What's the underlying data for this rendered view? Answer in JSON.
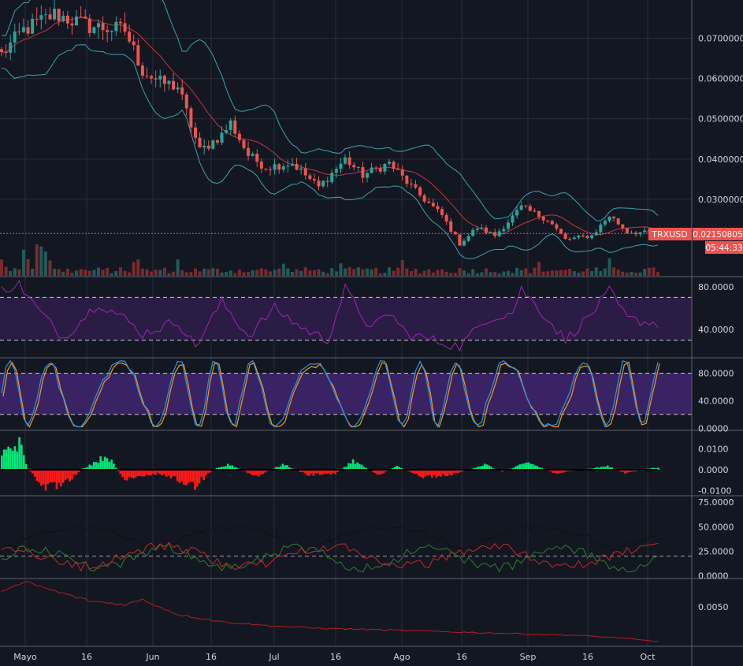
{
  "colors": {
    "background": "#131722",
    "grid": "#2a2e39",
    "up": "#26a69a",
    "down": "#ef5350",
    "bollinger": "#3ba3ad",
    "ma": "#c3383d",
    "volume_up": "#1e5d5a",
    "volume_down": "#7a2b2e",
    "rsi": "#9c27b0",
    "rsi_band": "#2b1c45",
    "stoch_k": "#2196f3",
    "stoch_d": "#ff9800",
    "stoch_band": "#3a2365",
    "hist_up": "#00e676",
    "hist_down": "#ff1a1a",
    "dmi_plus": "#2e7d32",
    "dmi_minus": "#c62828",
    "adx": "#111111",
    "bottom_line": "#b71c1c",
    "price_tag": "#ef5350"
  },
  "symbol_tag": "TRXUSD",
  "price_tag": "0.02150805",
  "countdown_tag": "05:44:33",
  "time_axis": [
    "Mayo",
    "16",
    "Jun",
    "16",
    "Jul",
    "16",
    "Ago",
    "16",
    "Sep",
    "16",
    "Oct"
  ],
  "chart_data": [
    {
      "type": "candlestick",
      "pane": "price",
      "series_label": "TRXUSD",
      "yticks": [
        "0.07000000",
        "0.06000000",
        "0.05000000",
        "0.04000000",
        "0.03000000"
      ],
      "ylim": [
        0.011,
        0.0795
      ],
      "last_price": 0.02150805,
      "keypoints": [
        {
          "x": 0,
          "y": 0.066
        },
        {
          "x": 5,
          "y": 0.072
        },
        {
          "x": 12,
          "y": 0.076
        },
        {
          "x": 20,
          "y": 0.073
        },
        {
          "x": 28,
          "y": 0.072
        },
        {
          "x": 32,
          "y": 0.062
        },
        {
          "x": 36,
          "y": 0.059
        },
        {
          "x": 40,
          "y": 0.058
        },
        {
          "x": 45,
          "y": 0.042
        },
        {
          "x": 50,
          "y": 0.046
        },
        {
          "x": 52,
          "y": 0.049
        },
        {
          "x": 56,
          "y": 0.041
        },
        {
          "x": 60,
          "y": 0.038
        },
        {
          "x": 66,
          "y": 0.039
        },
        {
          "x": 72,
          "y": 0.033
        },
        {
          "x": 78,
          "y": 0.04
        },
        {
          "x": 82,
          "y": 0.036
        },
        {
          "x": 88,
          "y": 0.039
        },
        {
          "x": 94,
          "y": 0.032
        },
        {
          "x": 100,
          "y": 0.026
        },
        {
          "x": 104,
          "y": 0.019
        },
        {
          "x": 108,
          "y": 0.023
        },
        {
          "x": 112,
          "y": 0.021
        },
        {
          "x": 118,
          "y": 0.028
        },
        {
          "x": 124,
          "y": 0.025
        },
        {
          "x": 128,
          "y": 0.02
        },
        {
          "x": 134,
          "y": 0.021
        },
        {
          "x": 138,
          "y": 0.026
        },
        {
          "x": 142,
          "y": 0.022
        },
        {
          "x": 148,
          "y": 0.0215
        }
      ]
    },
    {
      "type": "line",
      "pane": "rsi",
      "yticks": [
        "80.0000",
        "40.0000"
      ],
      "ylim": [
        15,
        88
      ],
      "bands": [
        70,
        30
      ],
      "keypoints": [
        {
          "x": 0,
          "y": 78
        },
        {
          "x": 4,
          "y": 82
        },
        {
          "x": 8,
          "y": 60
        },
        {
          "x": 14,
          "y": 32
        },
        {
          "x": 22,
          "y": 65
        },
        {
          "x": 28,
          "y": 50
        },
        {
          "x": 32,
          "y": 36
        },
        {
          "x": 40,
          "y": 48
        },
        {
          "x": 44,
          "y": 24
        },
        {
          "x": 50,
          "y": 66
        },
        {
          "x": 56,
          "y": 34
        },
        {
          "x": 62,
          "y": 60
        },
        {
          "x": 68,
          "y": 42
        },
        {
          "x": 74,
          "y": 30
        },
        {
          "x": 78,
          "y": 78
        },
        {
          "x": 84,
          "y": 40
        },
        {
          "x": 88,
          "y": 56
        },
        {
          "x": 92,
          "y": 36
        },
        {
          "x": 98,
          "y": 30
        },
        {
          "x": 104,
          "y": 24
        },
        {
          "x": 110,
          "y": 50
        },
        {
          "x": 116,
          "y": 56
        },
        {
          "x": 118,
          "y": 78
        },
        {
          "x": 124,
          "y": 50
        },
        {
          "x": 128,
          "y": 30
        },
        {
          "x": 134,
          "y": 55
        },
        {
          "x": 138,
          "y": 76
        },
        {
          "x": 142,
          "y": 50
        },
        {
          "x": 148,
          "y": 46
        }
      ]
    },
    {
      "type": "line",
      "pane": "stochastic",
      "yticks": [
        "80.0000",
        "40.0000",
        "0.0000"
      ],
      "ylim": [
        -2,
        100
      ],
      "bands": [
        80,
        20
      ]
    },
    {
      "type": "bar",
      "pane": "momentum_histogram",
      "yticks": [
        "0.0100",
        "0.0000",
        "-0.0100"
      ],
      "ylim": [
        -0.012,
        0.018
      ],
      "keypoints": [
        {
          "x": 0,
          "y": 0.009
        },
        {
          "x": 4,
          "y": 0.015
        },
        {
          "x": 6,
          "y": 0.0
        },
        {
          "x": 10,
          "y": -0.01
        },
        {
          "x": 14,
          "y": -0.009
        },
        {
          "x": 18,
          "y": 0.0
        },
        {
          "x": 24,
          "y": 0.008
        },
        {
          "x": 28,
          "y": -0.006
        },
        {
          "x": 36,
          "y": -0.002
        },
        {
          "x": 44,
          "y": -0.009
        },
        {
          "x": 48,
          "y": 0.0
        },
        {
          "x": 52,
          "y": 0.003
        },
        {
          "x": 58,
          "y": -0.004
        },
        {
          "x": 64,
          "y": 0.003
        },
        {
          "x": 70,
          "y": -0.003
        },
        {
          "x": 76,
          "y": -0.002
        },
        {
          "x": 80,
          "y": 0.005
        },
        {
          "x": 86,
          "y": -0.003
        },
        {
          "x": 90,
          "y": 0.002
        },
        {
          "x": 96,
          "y": -0.004
        },
        {
          "x": 102,
          "y": -0.003
        },
        {
          "x": 110,
          "y": 0.003
        },
        {
          "x": 114,
          "y": -0.001
        },
        {
          "x": 120,
          "y": 0.004
        },
        {
          "x": 126,
          "y": -0.002
        },
        {
          "x": 132,
          "y": 0.0
        },
        {
          "x": 138,
          "y": 0.002
        },
        {
          "x": 142,
          "y": -0.002
        },
        {
          "x": 148,
          "y": 0.001
        }
      ]
    },
    {
      "type": "line",
      "pane": "dmi",
      "yticks": [
        "75.0000",
        "50.0000",
        "25.0000",
        "0.0000"
      ],
      "ylim": [
        -2,
        80
      ],
      "dashed_level": 20
    },
    {
      "type": "line",
      "pane": "bottom_indicator",
      "yticks": [
        "0.0050"
      ],
      "ylim": [
        0.0018,
        0.0072
      ],
      "keypoints": [
        {
          "x": 0,
          "y": 0.0064
        },
        {
          "x": 6,
          "y": 0.007
        },
        {
          "x": 12,
          "y": 0.0063
        },
        {
          "x": 20,
          "y": 0.0055
        },
        {
          "x": 28,
          "y": 0.0052
        },
        {
          "x": 32,
          "y": 0.0056
        },
        {
          "x": 40,
          "y": 0.0044
        },
        {
          "x": 50,
          "y": 0.0038
        },
        {
          "x": 60,
          "y": 0.0035
        },
        {
          "x": 70,
          "y": 0.0033
        },
        {
          "x": 80,
          "y": 0.0032
        },
        {
          "x": 90,
          "y": 0.0031
        },
        {
          "x": 100,
          "y": 0.003
        },
        {
          "x": 110,
          "y": 0.0029
        },
        {
          "x": 120,
          "y": 0.0028
        },
        {
          "x": 130,
          "y": 0.0027
        },
        {
          "x": 140,
          "y": 0.0025
        },
        {
          "x": 148,
          "y": 0.0022
        }
      ]
    }
  ]
}
